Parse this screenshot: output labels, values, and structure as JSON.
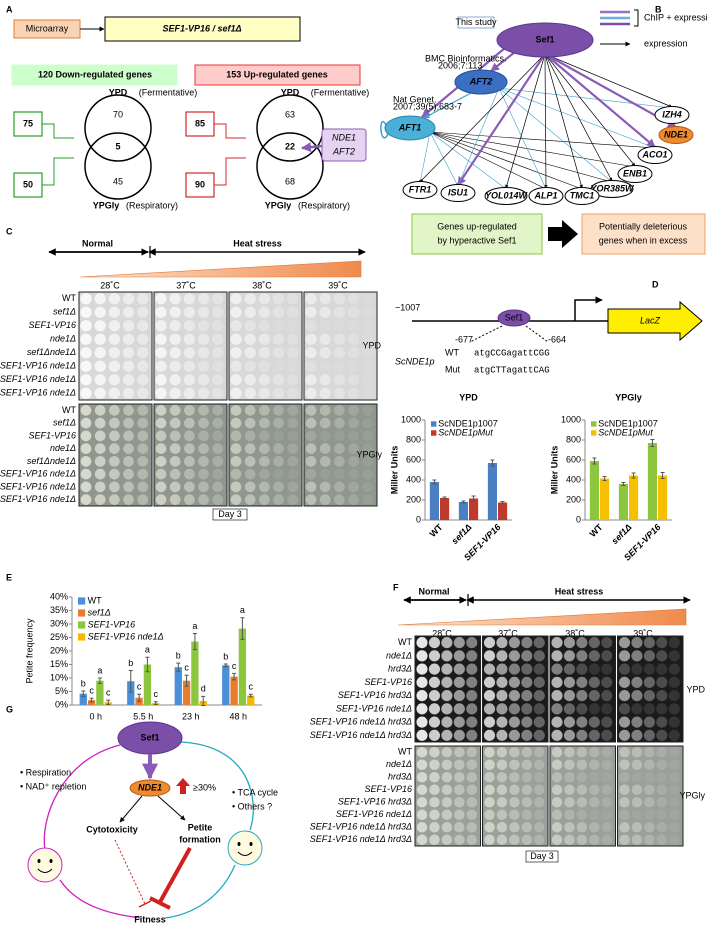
{
  "panels": {
    "A": {
      "label": "A",
      "source": "Microarray",
      "comparison": "SEF1-VP16 / sef1Δ",
      "down": {
        "title": "120 Down-regulated genes",
        "top": "YPD",
        "top_note": "(Fermentative)",
        "bottom": "YPGly",
        "bottom_note": "(Respiratory)",
        "top_only": "70",
        "both": "5",
        "bottom_only": "45",
        "top_total": "75",
        "bottom_total": "50"
      },
      "up": {
        "title": "153 Up-regulated genes",
        "top": "YPD",
        "top_note": "(Fermentative)",
        "bottom": "YPGly",
        "bottom_note": "(Respiratory)",
        "top_only": "63",
        "both": "22",
        "bottom_only": "68",
        "top_total": "85",
        "bottom_total": "90"
      },
      "callout": [
        "NDE1",
        "AFT2"
      ]
    },
    "B": {
      "label": "B",
      "note": "This study",
      "regulator": "Sef1",
      "legend": [
        "ChIP + expression",
        "expression"
      ],
      "aft2": "AFT2",
      "aft2_ref": [
        "BMC Bioinformatics.",
        "2006;7:113"
      ],
      "aft1": "AFT1",
      "aft1_ref": [
        "Nat Genet.",
        "2007;39(5):683-7"
      ],
      "genes": [
        "IZH4",
        "NDE1",
        "ACO1",
        "ENB1",
        "YOR385W",
        "TMC1",
        "ALP1",
        "YOL014W",
        "ISU1",
        "FTR1"
      ],
      "box_left": [
        "Genes up-regulated",
        "by hyperactive Sef1"
      ],
      "box_right": [
        "Potentially deleterious",
        "genes when in excess"
      ]
    },
    "C": {
      "label": "C",
      "normal": "Normal",
      "heat": "Heat stress",
      "temps": [
        "28˚C",
        "37˚C",
        "38˚C",
        "39˚C"
      ],
      "strains": [
        "WT",
        "sef1Δ",
        "SEF1-VP16",
        "nde1Δ",
        "sef1Δnde1Δ",
        "SEF1-VP16 nde1Δ",
        "SEF1-VP16 nde1Δ",
        "SEF1-VP16 nde1Δ"
      ],
      "media": [
        "YPD",
        "YPGly"
      ],
      "day": "Day 3"
    },
    "D": {
      "label": "D",
      "start": "−1007",
      "factor": "Sef1",
      "reporter": "LacZ",
      "left_pos": "-677",
      "right_pos": "-664",
      "promoter": "ScNDE1p",
      "wt": "WT",
      "mut": "Mut",
      "wt_seq": "atgCCGagattCGG",
      "mut_seq": "atgCTTagattCAG"
    },
    "E": {
      "label": "E"
    },
    "F": {
      "label": "F",
      "normal": "Normal",
      "heat": "Heat stress",
      "temps": [
        "28˚C",
        "37˚C",
        "38˚C",
        "39˚C"
      ],
      "strains": [
        {
          "name": "WT",
          "color": "#000000"
        },
        {
          "name": "nde1Δ",
          "color": "#000000"
        },
        {
          "name": "hrd3Δ",
          "color": "#000000"
        },
        {
          "name": "SEF1-VP16",
          "color": "#d0202a"
        },
        {
          "name": "SEF1-VP16 hrd3Δ",
          "color": "#22a8c4"
        },
        {
          "name": "SEF1-VP16 nde1Δ",
          "color": "#2a9d4a"
        },
        {
          "name": "SEF1-VP16 nde1Δ hrd3Δ",
          "color": "#c020c0"
        },
        {
          "name": "SEF1-VP16 nde1Δ hrd3Δ",
          "color": "#c020c0"
        }
      ],
      "media": [
        "YPD",
        "YPGly"
      ],
      "day": "Day 3"
    },
    "G": {
      "label": "G",
      "regulator": "Sef1",
      "target": "NDE1",
      "change": "≥30%",
      "left_items": [
        "• Respiration",
        "• NAD⁺ repletion"
      ],
      "right_items": [
        "• TCA cycle",
        "• Others ?"
      ],
      "cytotoxicity": "Cytotoxicity",
      "petite": [
        "Petite",
        "formation"
      ],
      "fitness": "Fitness"
    }
  },
  "chart_data": [
    {
      "type": "bar",
      "title": "YPD",
      "ylabel": "Miller Units",
      "categories": [
        "WT",
        "sef1Δ",
        "SEF1-VP16"
      ],
      "series": [
        {
          "name": "ScNDE1p1007",
          "color": "#4a7fc4",
          "values": [
            380,
            180,
            570
          ],
          "errors": [
            20,
            10,
            30
          ]
        },
        {
          "name": "ScNDE1pMut",
          "color": "#c0392b",
          "values": [
            220,
            215,
            175
          ],
          "errors": [
            10,
            25,
            10
          ]
        }
      ],
      "ylim": [
        0,
        1000
      ],
      "yticks": [
        0,
        200,
        400,
        600,
        800,
        1000
      ],
      "legend": "top-left"
    },
    {
      "type": "bar",
      "title": "YPGly",
      "ylabel": "Miller Units",
      "categories": [
        "WT",
        "sef1Δ",
        "SEF1-VP16"
      ],
      "series": [
        {
          "name": "ScNDE1p1007",
          "color": "#8cc63f",
          "values": [
            590,
            360,
            770
          ],
          "errors": [
            30,
            15,
            35
          ]
        },
        {
          "name": "ScNDE1pMut",
          "color": "#f5c000",
          "values": [
            415,
            445,
            445
          ],
          "errors": [
            20,
            25,
            30
          ]
        }
      ],
      "ylim": [
        0,
        1000
      ],
      "yticks": [
        0,
        200,
        400,
        600,
        800,
        1000
      ],
      "legend": "top-left"
    },
    {
      "type": "bar",
      "ylabel": "Petite frequency",
      "categories": [
        "0 h",
        "5.5 h",
        "23 h",
        "48 h"
      ],
      "series": [
        {
          "name": "WT",
          "color": "#4a90d9",
          "values": [
            4.2,
            8.8,
            14,
            14.7
          ],
          "errors": [
            1,
            4,
            1.5,
            0.5
          ],
          "letters": [
            "b",
            "b",
            "b",
            "b"
          ]
        },
        {
          "name": "sef1Δ",
          "color": "#e87d2f",
          "values": [
            1.8,
            2.7,
            9,
            10.5
          ],
          "errors": [
            0.7,
            1.3,
            2,
            1.2
          ],
          "letters": [
            "c",
            "c",
            "c",
            "c"
          ]
        },
        {
          "name": "SEF1-VP16",
          "color": "#8cc63f",
          "values": [
            9,
            15,
            23.5,
            28.3
          ],
          "errors": [
            1,
            2.7,
            3,
            4
          ],
          "letters": [
            "a",
            "a",
            "a",
            "a"
          ]
        },
        {
          "name": "SEF1-VP16 nde1Δ",
          "color": "#f5b800",
          "values": [
            1,
            0.7,
            1.5,
            3.5
          ],
          "errors": [
            0.8,
            0.5,
            1.7,
            0.5
          ],
          "letters": [
            "c",
            "c",
            "d",
            "c"
          ]
        }
      ],
      "ylim": [
        0,
        40
      ],
      "yticks": [
        {
          "value": 0,
          "label": "0%"
        },
        {
          "value": 5,
          "label": "5%"
        },
        {
          "value": 10,
          "label": "10%"
        },
        {
          "value": 15,
          "label": "15%"
        },
        {
          "value": 20,
          "label": "20%"
        },
        {
          "value": 25,
          "label": "25%"
        },
        {
          "value": 30,
          "label": "30%"
        },
        {
          "value": 35,
          "label": "35%"
        },
        {
          "value": 40,
          "label": "40%"
        }
      ],
      "legend": "top-left"
    }
  ]
}
